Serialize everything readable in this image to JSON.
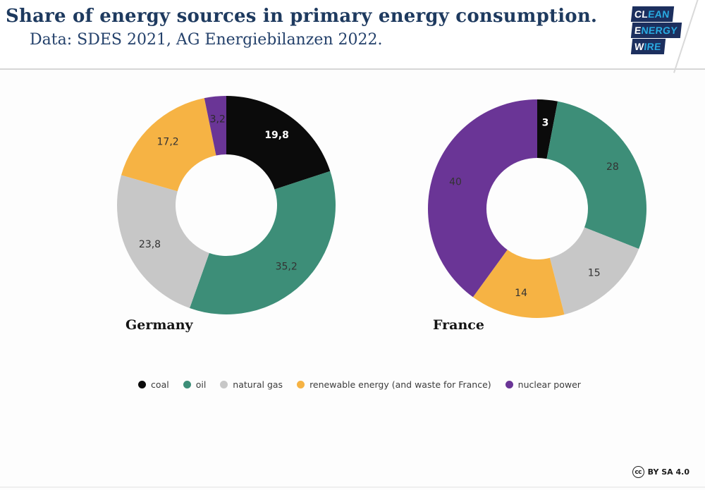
{
  "header": {
    "title": "Share of energy sources in primary energy consumption.",
    "subtitle": "Data: SDES 2021, AG Energiebilanzen 2022.",
    "logo": {
      "bg_color": "#1c2f5e",
      "accent_color": "#29abe2",
      "lines": [
        {
          "white": "CL",
          "blue": "EAN"
        },
        {
          "white": "E",
          "blue": "NERGY"
        },
        {
          "white": "W",
          "blue": "IRE"
        }
      ]
    }
  },
  "chart_data": [
    {
      "type": "pie",
      "subtype": "donut",
      "title": "Germany",
      "categories": [
        "coal",
        "oil",
        "natural gas",
        "renewable energy",
        "nuclear power"
      ],
      "values": [
        19.8,
        35.2,
        23.8,
        17.2,
        3.2
      ],
      "value_labels": [
        "19,8",
        "35,2",
        "23,8",
        "17,2",
        "3,2"
      ],
      "colors": [
        "#0b0b0b",
        "#3d8e78",
        "#c7c7c7",
        "#f6b344",
        "#6a3596"
      ],
      "label_colors": [
        "#ffffff",
        "#333333",
        "#333333",
        "#333333",
        "#2a2a2a"
      ],
      "start_angle_deg": -90,
      "direction": "clockwise",
      "legend_position": "bottom"
    },
    {
      "type": "pie",
      "subtype": "donut",
      "title": "France",
      "categories": [
        "coal",
        "oil",
        "natural gas",
        "renewable energy (and waste)",
        "nuclear power"
      ],
      "values": [
        3,
        28,
        15,
        14,
        40
      ],
      "value_labels": [
        "3",
        "28",
        "15",
        "14",
        "40"
      ],
      "colors": [
        "#0b0b0b",
        "#3d8e78",
        "#c7c7c7",
        "#f6b344",
        "#6a3596"
      ],
      "label_colors": [
        "#ffffff",
        "#333333",
        "#333333",
        "#333333",
        "#333333"
      ],
      "start_angle_deg": -90,
      "direction": "clockwise",
      "legend_position": "bottom"
    }
  ],
  "legend": {
    "items": [
      {
        "label": "coal",
        "color": "#0b0b0b"
      },
      {
        "label": "oil",
        "color": "#3d8e78"
      },
      {
        "label": "natural gas",
        "color": "#c7c7c7"
      },
      {
        "label": "renewable energy (and waste for France)",
        "color": "#f6b344"
      },
      {
        "label": "nuclear power",
        "color": "#6a3596"
      }
    ]
  },
  "footer": {
    "cc_glyph": "cc",
    "license": "BY SA 4.0"
  }
}
